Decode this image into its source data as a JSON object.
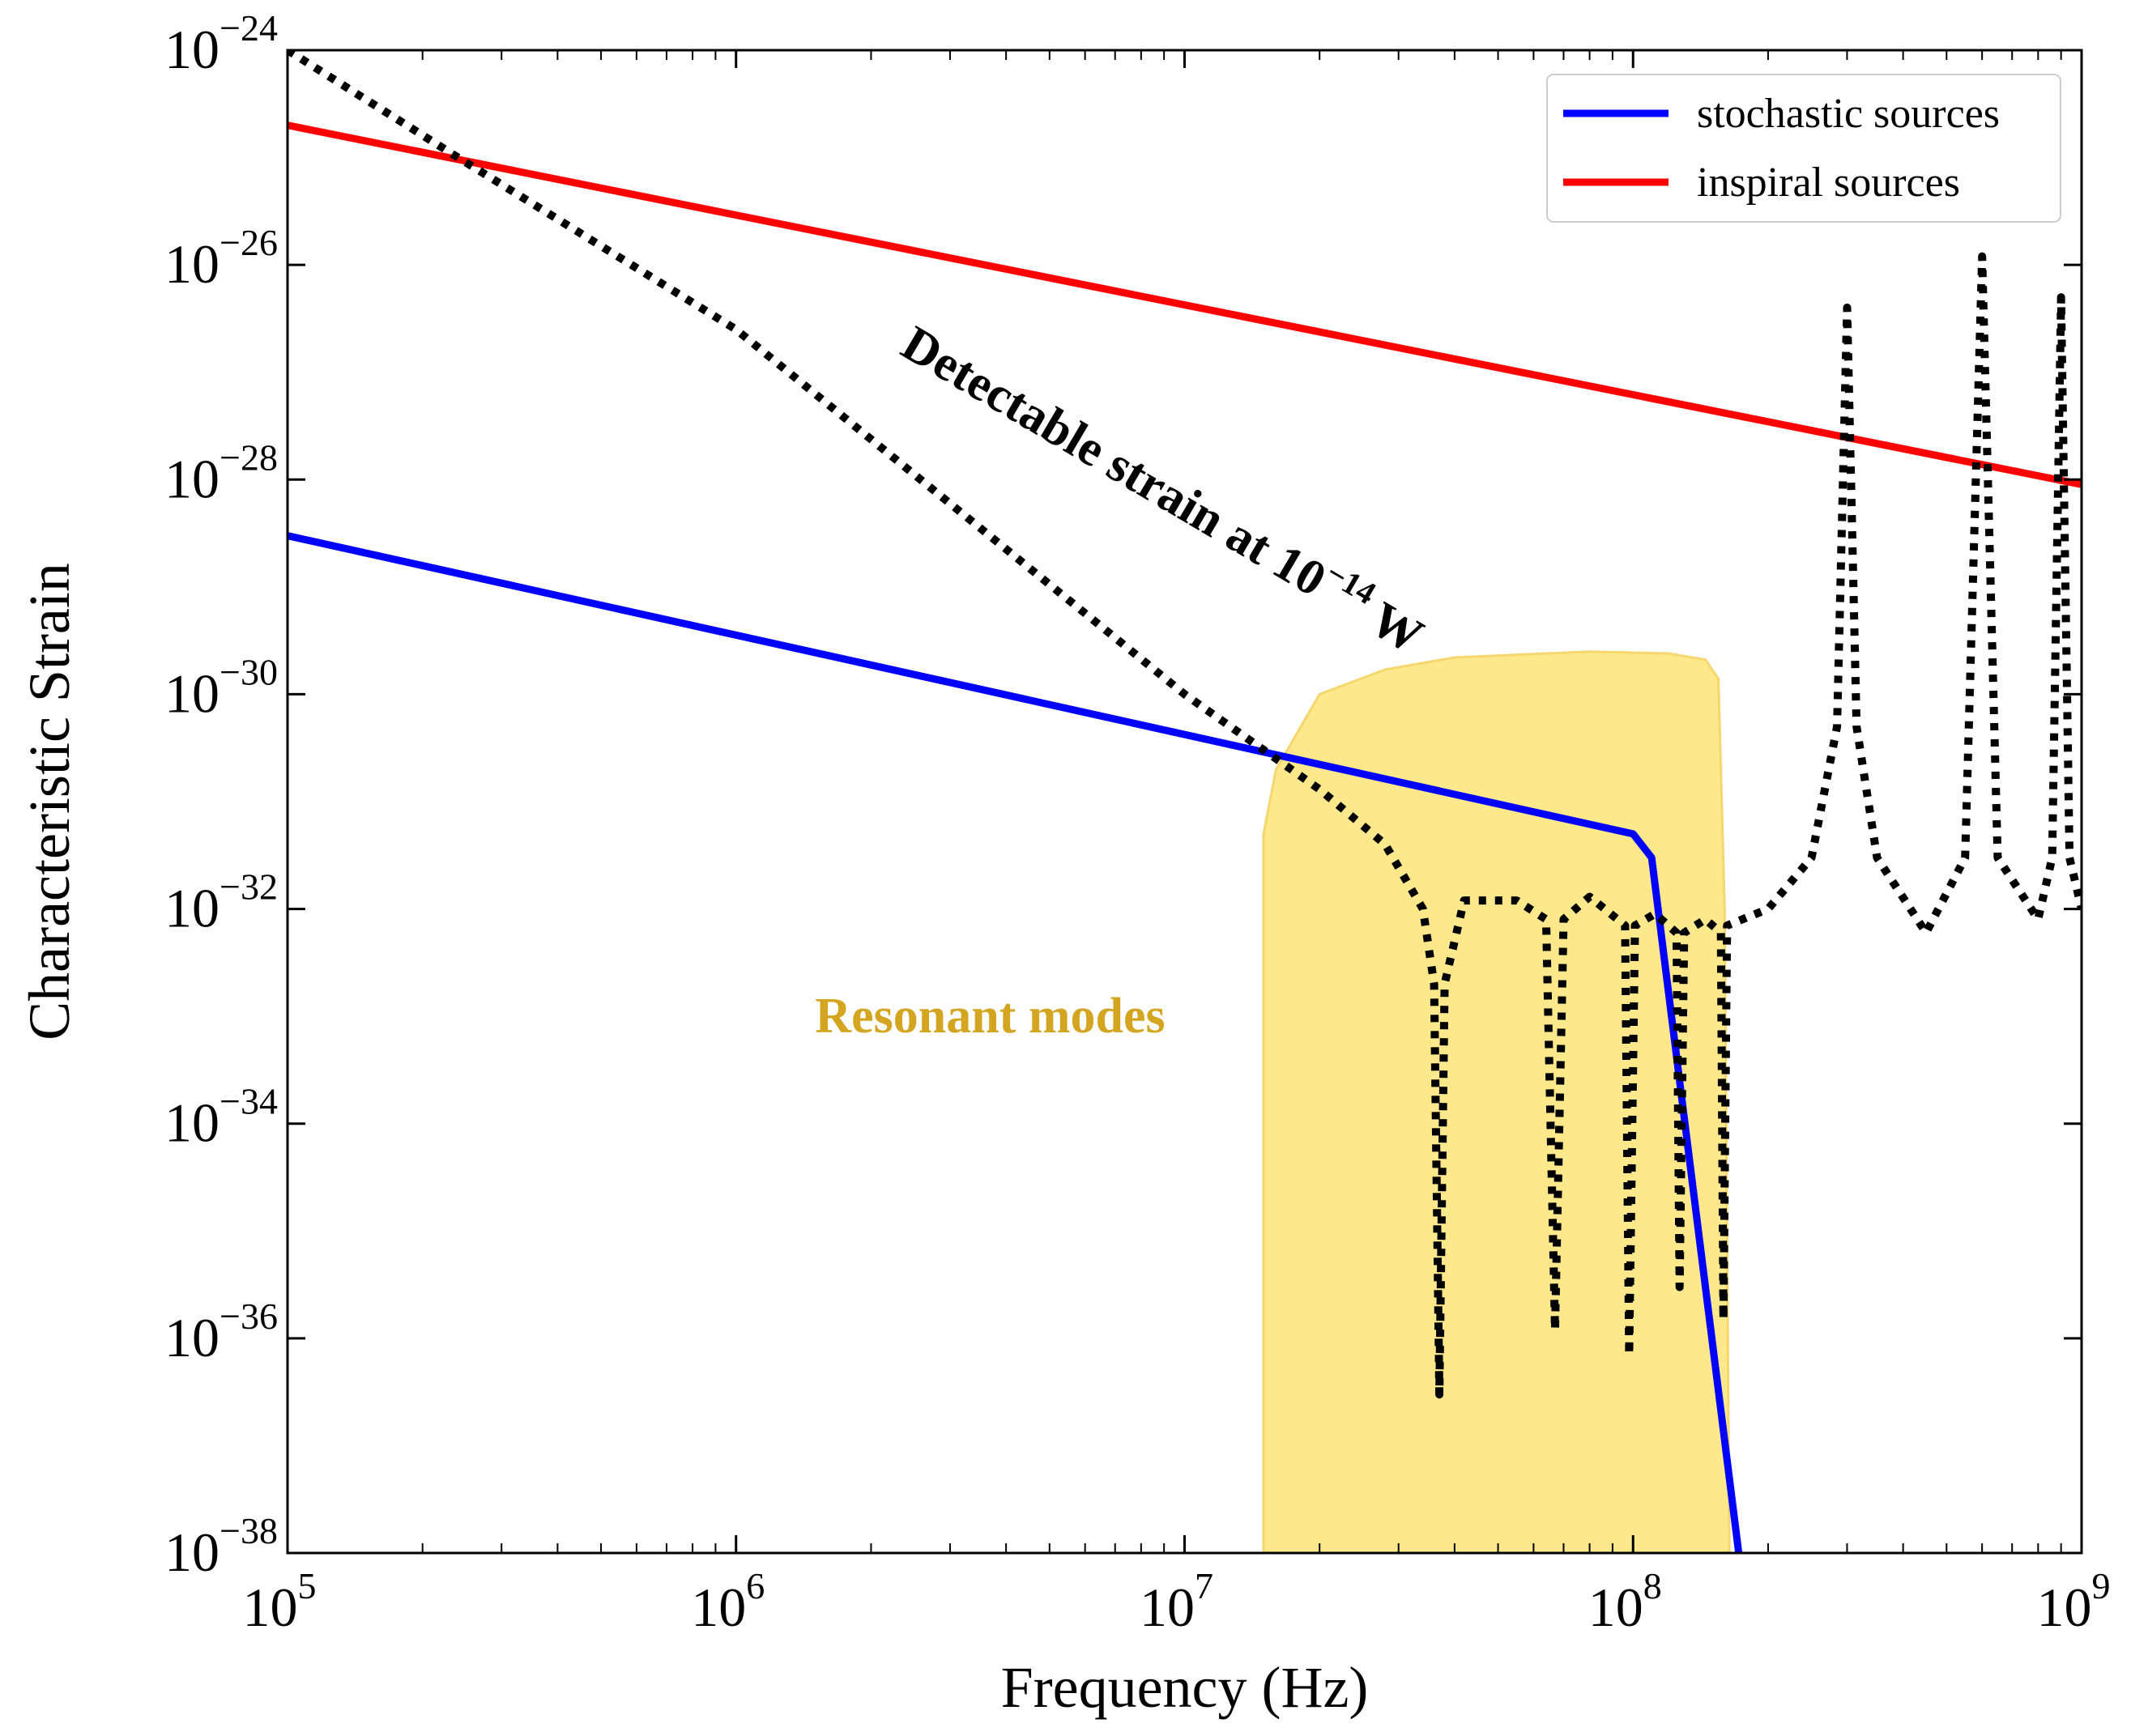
{
  "chart_data": {
    "type": "line",
    "title": "",
    "xlabel": "Frequency (Hz)",
    "ylabel": "Characteristic Strain",
    "xscale": "log",
    "yscale": "log",
    "xlim": [
      100000,
      1000000000
    ],
    "ylim": [
      1e-38,
      1e-24
    ],
    "x_ticks": [
      {
        "value": 100000,
        "base": "10",
        "exp": "5"
      },
      {
        "value": 1000000,
        "base": "10",
        "exp": "6"
      },
      {
        "value": 10000000,
        "base": "10",
        "exp": "7"
      },
      {
        "value": 100000000,
        "base": "10",
        "exp": "8"
      },
      {
        "value": 1000000000,
        "base": "10",
        "exp": "9"
      }
    ],
    "y_ticks": [
      {
        "value": 1e-38,
        "base": "10",
        "exp": "−38"
      },
      {
        "value": 1e-36,
        "base": "10",
        "exp": "−36"
      },
      {
        "value": 1e-34,
        "base": "10",
        "exp": "−34"
      },
      {
        "value": 1e-32,
        "base": "10",
        "exp": "−32"
      },
      {
        "value": 1e-30,
        "base": "10",
        "exp": "−30"
      },
      {
        "value": 1e-28,
        "base": "10",
        "exp": "−28"
      },
      {
        "value": 1e-26,
        "base": "10",
        "exp": "−26"
      },
      {
        "value": 1e-24,
        "base": "10",
        "exp": "−24"
      }
    ],
    "legend_position": "top-right",
    "series": [
      {
        "name": "stochastic sources",
        "color": "#0000ff",
        "style": "solid",
        "points": [
          [
            100000,
            3e-29
          ],
          [
            100000000,
            5e-32
          ],
          [
            110000000,
            3e-32
          ],
          [
            172000000,
            1e-38
          ]
        ]
      },
      {
        "name": "inspiral sources",
        "color": "#ff0000",
        "style": "solid",
        "points": [
          [
            100000,
            2e-25
          ],
          [
            1000000000,
            9e-29
          ]
        ]
      },
      {
        "name": "Detectable strain at 10^-14 W",
        "color": "#000000",
        "style": "dotted",
        "points": [
          [
            100000,
            1e-24
          ],
          [
            240000,
            1e-25
          ],
          [
            1000000,
            2.5e-27
          ],
          [
            10000000,
            1e-30
          ],
          [
            20000000,
            1.3e-31
          ],
          [
            28000000,
            4e-32
          ],
          [
            34000000,
            1e-32
          ],
          [
            36000000,
            2e-33
          ],
          [
            37000000,
            3e-37
          ],
          [
            38000000,
            2e-33
          ],
          [
            42000000,
            1.2e-32
          ],
          [
            55000000,
            1.2e-32
          ],
          [
            64000000,
            8e-33
          ],
          [
            67000000,
            1.2e-36
          ],
          [
            70000000,
            8e-33
          ],
          [
            80000000,
            1.3e-32
          ],
          [
            96000000,
            7e-33
          ],
          [
            98000000,
            7e-37
          ],
          [
            101000000,
            7e-33
          ],
          [
            112000000,
            9e-33
          ],
          [
            125000000,
            6e-33
          ],
          [
            127000000,
            3e-36
          ],
          [
            130000000,
            6e-33
          ],
          [
            145000000,
            8e-33
          ],
          [
            157000000,
            6e-33
          ],
          [
            159000000,
            1.5e-36
          ],
          [
            162000000,
            7e-33
          ],
          [
            200000000,
            1e-32
          ],
          [
            250000000,
            3e-32
          ],
          [
            285000000,
            5e-31
          ],
          [
            300000000,
            4e-27
          ],
          [
            315000000,
            5e-31
          ],
          [
            350000000,
            3e-32
          ],
          [
            450000000,
            6e-33
          ],
          [
            550000000,
            3e-32
          ],
          [
            600000000,
            1.2e-26
          ],
          [
            650000000,
            3e-32
          ],
          [
            800000000,
            8e-33
          ],
          [
            860000000,
            3e-32
          ],
          [
            900000000,
            5e-27
          ],
          [
            940000000,
            3e-32
          ],
          [
            1000000000,
            1e-32
          ]
        ]
      }
    ],
    "regions": [
      {
        "label": "Resonant modes",
        "color": "#fde88b",
        "edge_color": "#f5d76e",
        "points": [
          [
            15000000,
            1e-38
          ],
          [
            15000000,
            5e-32
          ],
          [
            16000000,
            2e-31
          ],
          [
            20000000,
            1e-30
          ],
          [
            28000000,
            1.7e-30
          ],
          [
            40000000,
            2.2e-30
          ],
          [
            80000000,
            2.5e-30
          ],
          [
            120000000,
            2.4e-30
          ],
          [
            145000000,
            2.1e-30
          ],
          [
            155000000,
            1.4e-30
          ],
          [
            160000000,
            1e-32
          ],
          [
            164000000,
            1e-38
          ]
        ]
      }
    ],
    "annotations": [
      {
        "text": "Detectable strain at 10",
        "sup": "−14",
        "suffix": " W",
        "x": 2300000,
        "y": 1.5e-27,
        "rotation_deg": 30.5,
        "color": "#000000"
      },
      {
        "text": "Resonant modes",
        "x": 1500000,
        "y": 1e-33,
        "color": "#d4a520"
      }
    ]
  }
}
